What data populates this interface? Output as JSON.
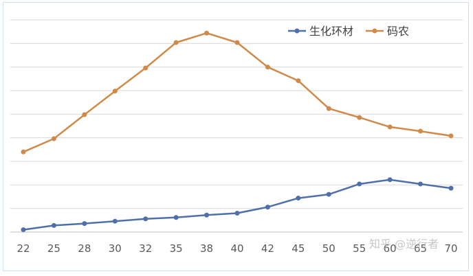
{
  "chart_data": {
    "type": "line",
    "categories": [
      "22",
      "25",
      "28",
      "30",
      "32",
      "35",
      "38",
      "40",
      "42",
      "45",
      "50",
      "55",
      "60",
      "65",
      "70"
    ],
    "series": [
      {
        "name": "生化环材",
        "color": "#4e6fa8",
        "values": [
          0.5,
          1.4,
          1.8,
          2.3,
          2.8,
          3.1,
          3.6,
          4.0,
          5.3,
          7.2,
          8.0,
          10.2,
          11.1,
          10.2,
          9.3
        ]
      },
      {
        "name": "码农",
        "color": "#cf8a4a",
        "values": [
          17.0,
          19.8,
          24.9,
          29.9,
          34.8,
          40.2,
          42.2,
          40.2,
          35.0,
          32.1,
          26.2,
          24.3,
          22.3,
          21.4,
          20.4
        ]
      }
    ],
    "ylim": [
      0,
      45
    ],
    "grid": true,
    "legend": "top-right"
  },
  "watermark": "知乎 @逆行者"
}
